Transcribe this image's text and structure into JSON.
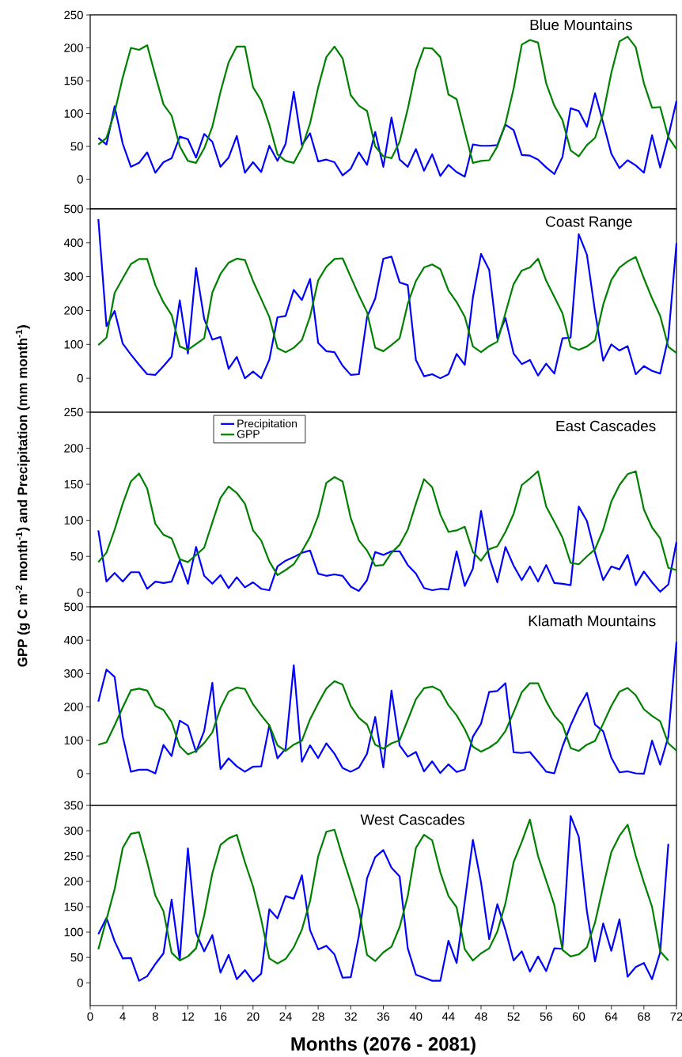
{
  "chart_data": [
    {
      "type": "line",
      "title": "Blue Mountains",
      "x": [
        1,
        2,
        3,
        4,
        5,
        6,
        7,
        8,
        9,
        10,
        11,
        12,
        13,
        14,
        15,
        16,
        17,
        18,
        19,
        20,
        21,
        22,
        23,
        24,
        25,
        26,
        27,
        28,
        29,
        30,
        31,
        32,
        33,
        34,
        35,
        36,
        37,
        38,
        39,
        40,
        41,
        42,
        43,
        44,
        45,
        46,
        47,
        48,
        49,
        50,
        51,
        52,
        53,
        54,
        55,
        56,
        57,
        58,
        59,
        60,
        61,
        62,
        63,
        64,
        65,
        66,
        67,
        68,
        69,
        70,
        71,
        72
      ],
      "xlim": [
        0,
        72
      ],
      "xticks": [
        0,
        4,
        8,
        12,
        16,
        20,
        24,
        28,
        32,
        36,
        40,
        44,
        48,
        52,
        56,
        60,
        64,
        68,
        72
      ],
      "ylim": [
        -45,
        250
      ],
      "yticks": [
        0,
        50,
        100,
        150,
        200,
        250
      ],
      "tick_labels": "y",
      "line_style": "solid",
      "series": [
        {
          "color": "#0000ff",
          "values": [
            63,
            53,
            111,
            54,
            19,
            25,
            41,
            10,
            26,
            32,
            65,
            61,
            33,
            69,
            57,
            19,
            33,
            66,
            10,
            26,
            11,
            51,
            28,
            54,
            133,
            52,
            70,
            27,
            30,
            26,
            6,
            16,
            41,
            22,
            72,
            19,
            94,
            30,
            19,
            46,
            13,
            38,
            5,
            22,
            11,
            4,
            53,
            51,
            51,
            52,
            83,
            75,
            37,
            36,
            30,
            18,
            8,
            34,
            108,
            104,
            80,
            131,
            86,
            39,
            17,
            29,
            21,
            10,
            67,
            18,
            65,
            119
          ]
        },
        {
          "color": "#008000",
          "values": [
            53,
            63,
            102,
            155,
            200,
            197,
            204,
            158,
            114,
            97,
            50,
            28,
            25,
            47,
            80,
            133,
            178,
            202,
            202,
            140,
            120,
            83,
            38,
            28,
            25,
            48,
            85,
            140,
            186,
            202,
            184,
            128,
            112,
            104,
            50,
            35,
            32,
            57,
            107,
            166,
            200,
            199,
            186,
            129,
            122,
            73,
            25,
            28,
            29,
            50,
            85,
            138,
            205,
            212,
            208,
            146,
            112,
            90,
            44,
            35,
            52,
            63,
            100,
            162,
            210,
            217,
            201,
            146,
            109,
            110,
            64,
            46
          ]
        }
      ]
    },
    {
      "type": "line",
      "title": "Coast Range",
      "x": [
        1,
        2,
        3,
        4,
        5,
        6,
        7,
        8,
        9,
        10,
        11,
        12,
        13,
        14,
        15,
        16,
        17,
        18,
        19,
        20,
        21,
        22,
        23,
        24,
        25,
        26,
        27,
        28,
        29,
        30,
        31,
        32,
        33,
        34,
        35,
        36,
        37,
        38,
        39,
        40,
        41,
        42,
        43,
        44,
        45,
        46,
        47,
        48,
        49,
        50,
        51,
        52,
        53,
        54,
        55,
        56,
        57,
        58,
        59,
        60,
        61,
        62,
        63,
        64,
        65,
        66,
        67,
        68,
        69,
        70,
        71,
        72
      ],
      "xlim": [
        0,
        72
      ],
      "xticks": [
        0,
        4,
        8,
        12,
        16,
        20,
        24,
        28,
        32,
        36,
        40,
        44,
        48,
        52,
        56,
        60,
        64,
        68,
        72
      ],
      "ylim": [
        -100,
        500
      ],
      "yticks": [
        0,
        100,
        200,
        300,
        400,
        500
      ],
      "tick_labels": "y",
      "line_style": "solid",
      "series": [
        {
          "color": "#0000ff",
          "values": [
            470,
            154,
            199,
            102,
            70,
            40,
            12,
            10,
            36,
            64,
            230,
            73,
            325,
            175,
            114,
            122,
            28,
            63,
            0,
            20,
            0,
            55,
            180,
            184,
            261,
            231,
            293,
            104,
            80,
            77,
            37,
            10,
            12,
            181,
            235,
            353,
            359,
            283,
            275,
            54,
            6,
            12,
            0,
            12,
            72,
            40,
            239,
            367,
            320,
            118,
            178,
            73,
            42,
            54,
            8,
            43,
            14,
            118,
            120,
            425,
            365,
            196,
            52,
            100,
            82,
            95,
            12,
            36,
            22,
            14,
            120,
            399
          ]
        },
        {
          "color": "#008000",
          "values": [
            98,
            120,
            252,
            295,
            337,
            352,
            352,
            275,
            224,
            187,
            94,
            84,
            101,
            118,
            253,
            308,
            341,
            353,
            349,
            287,
            234,
            181,
            89,
            77,
            90,
            113,
            182,
            289,
            329,
            352,
            354,
            299,
            245,
            195,
            90,
            80,
            98,
            118,
            220,
            287,
            327,
            336,
            322,
            259,
            225,
            182,
            94,
            77,
            95,
            108,
            193,
            278,
            318,
            327,
            353,
            288,
            240,
            192,
            93,
            84,
            94,
            112,
            217,
            290,
            327,
            345,
            358,
            295,
            236,
            184,
            93,
            75
          ]
        }
      ]
    },
    {
      "type": "line",
      "title": "East Cascades",
      "ylabel": "GPP (g C m$^{-2}$ month$^{-1}$) and Precipitation (mm month$^{-1}$)",
      "x": [
        1,
        2,
        3,
        4,
        5,
        6,
        7,
        8,
        9,
        10,
        11,
        12,
        13,
        14,
        15,
        16,
        17,
        18,
        19,
        20,
        21,
        22,
        23,
        24,
        25,
        26,
        27,
        28,
        29,
        30,
        31,
        32,
        33,
        34,
        35,
        36,
        37,
        38,
        39,
        40,
        41,
        42,
        43,
        44,
        45,
        46,
        47,
        48,
        49,
        50,
        51,
        52,
        53,
        54,
        55,
        56,
        57,
        58,
        59,
        60,
        61,
        62,
        63,
        64,
        65,
        66,
        67,
        68,
        69,
        70,
        71,
        72
      ],
      "xlim": [
        0,
        72
      ],
      "xticks": [
        0,
        4,
        8,
        12,
        16,
        20,
        24,
        28,
        32,
        36,
        40,
        44,
        48,
        52,
        56,
        60,
        64,
        68,
        72
      ],
      "ylim": [
        -20,
        250
      ],
      "yticks": [
        0,
        50,
        100,
        150,
        200,
        250
      ],
      "tick_labels": "y",
      "line_style": "solid",
      "legend": "top left",
      "series": [
        {
          "name": "Precipitation",
          "color": "#0000ff",
          "values": [
            86,
            15,
            27,
            15,
            28,
            28,
            5,
            15,
            13,
            15,
            44,
            12,
            63,
            23,
            12,
            24,
            6,
            21,
            7,
            14,
            5,
            3,
            36,
            44,
            49,
            55,
            58,
            26,
            23,
            25,
            23,
            8,
            2,
            17,
            56,
            52,
            57,
            57,
            38,
            26,
            6,
            3,
            5,
            4,
            57,
            9,
            33,
            113,
            49,
            14,
            63,
            37,
            17,
            36,
            15,
            38,
            13,
            12,
            10,
            119,
            99,
            55,
            17,
            36,
            32,
            52,
            10,
            29,
            14,
            1,
            11,
            70
          ]
        },
        {
          "name": "GPP",
          "color": "#008000",
          "values": [
            42,
            55,
            87,
            123,
            154,
            165,
            144,
            95,
            80,
            75,
            46,
            42,
            52,
            62,
            97,
            131,
            147,
            138,
            123,
            86,
            72,
            43,
            24,
            31,
            39,
            57,
            77,
            106,
            152,
            160,
            154,
            103,
            72,
            58,
            37,
            38,
            55,
            66,
            87,
            123,
            157,
            146,
            108,
            84,
            86,
            91,
            56,
            44,
            60,
            64,
            84,
            109,
            149,
            158,
            168,
            119,
            98,
            76,
            41,
            39,
            50,
            60,
            87,
            126,
            149,
            164,
            168,
            115,
            90,
            75,
            34,
            31
          ]
        }
      ]
    },
    {
      "type": "line",
      "title": "Klamath Mountains",
      "x": [
        1,
        2,
        3,
        4,
        5,
        6,
        7,
        8,
        9,
        10,
        11,
        12,
        13,
        14,
        15,
        16,
        17,
        18,
        19,
        20,
        21,
        22,
        23,
        24,
        25,
        26,
        27,
        28,
        29,
        30,
        31,
        32,
        33,
        34,
        35,
        36,
        37,
        38,
        39,
        40,
        41,
        42,
        43,
        44,
        45,
        46,
        47,
        48,
        49,
        50,
        51,
        52,
        53,
        54,
        55,
        56,
        57,
        58,
        59,
        60,
        61,
        62,
        63,
        64,
        65,
        66,
        67,
        68,
        69,
        70,
        71,
        72
      ],
      "xlim": [
        0,
        72
      ],
      "xticks": [
        0,
        4,
        8,
        12,
        16,
        20,
        24,
        28,
        32,
        36,
        40,
        44,
        48,
        52,
        56,
        60,
        64,
        68,
        72
      ],
      "ylim": [
        -95,
        500
      ],
      "yticks": [
        0,
        100,
        200,
        300,
        400,
        500
      ],
      "tick_labels": "y",
      "line_style": "solid",
      "series": [
        {
          "color": "#0000ff",
          "values": [
            216,
            312,
            290,
            111,
            6,
            12,
            12,
            1,
            86,
            53,
            159,
            144,
            65,
            128,
            272,
            14,
            46,
            22,
            6,
            21,
            22,
            145,
            46,
            75,
            325,
            36,
            85,
            47,
            91,
            60,
            17,
            6,
            18,
            60,
            170,
            19,
            249,
            85,
            51,
            65,
            7,
            37,
            2,
            28,
            5,
            13,
            111,
            150,
            245,
            248,
            271,
            64,
            62,
            65,
            36,
            6,
            1,
            81,
            145,
            199,
            242,
            147,
            127,
            48,
            4,
            7,
            1,
            0,
            99,
            27,
            111,
            395
          ]
        },
        {
          "color": "#008000",
          "values": [
            87,
            94,
            145,
            199,
            250,
            255,
            249,
            203,
            191,
            155,
            82,
            58,
            68,
            92,
            124,
            197,
            246,
            258,
            254,
            208,
            175,
            145,
            85,
            68,
            87,
            99,
            163,
            211,
            255,
            277,
            267,
            203,
            167,
            147,
            87,
            75,
            91,
            100,
            161,
            223,
            256,
            261,
            249,
            205,
            175,
            133,
            81,
            66,
            78,
            95,
            128,
            184,
            244,
            271,
            271,
            217,
            174,
            147,
            77,
            68,
            87,
            98,
            150,
            203,
            246,
            257,
            235,
            193,
            173,
            157,
            91,
            69
          ]
        }
      ]
    },
    {
      "type": "line",
      "title": "West Cascades",
      "xlabel": "Months (2076 - 2081)",
      "x": [
        1,
        2,
        3,
        4,
        5,
        6,
        7,
        8,
        9,
        10,
        11,
        12,
        13,
        14,
        15,
        16,
        17,
        18,
        19,
        20,
        21,
        22,
        23,
        24,
        25,
        26,
        27,
        28,
        29,
        30,
        31,
        32,
        33,
        34,
        35,
        36,
        37,
        38,
        39,
        40,
        41,
        42,
        43,
        44,
        45,
        46,
        47,
        48,
        49,
        50,
        51,
        52,
        53,
        54,
        55,
        56,
        57,
        58,
        59,
        60,
        61,
        62,
        63,
        64,
        65,
        66,
        67,
        68,
        69,
        70,
        71
      ],
      "xlim": [
        0,
        72
      ],
      "xticks": [
        0,
        4,
        8,
        12,
        16,
        20,
        24,
        28,
        32,
        36,
        40,
        44,
        48,
        52,
        56,
        60,
        64,
        68,
        72
      ],
      "ylim": [
        -45,
        350
      ],
      "yticks": [
        0,
        50,
        100,
        150,
        200,
        250,
        300,
        350
      ],
      "line_style": "solid",
      "series": [
        {
          "color": "#0000ff",
          "values": [
            96,
            128,
            82,
            48,
            49,
            4,
            13,
            37,
            58,
            164,
            45,
            265,
            98,
            62,
            94,
            20,
            55,
            7,
            25,
            3,
            18,
            145,
            127,
            171,
            166,
            212,
            104,
            66,
            73,
            56,
            10,
            11,
            93,
            206,
            248,
            262,
            227,
            210,
            68,
            16,
            10,
            4,
            4,
            83,
            39,
            160,
            282,
            198,
            86,
            155,
            104,
            44,
            62,
            22,
            52,
            23,
            68,
            67,
            329,
            288,
            141,
            42,
            117,
            63,
            125,
            12,
            31,
            39,
            7,
            60,
            274
          ]
        },
        {
          "color": "#008000",
          "values": [
            66,
            125,
            185,
            266,
            294,
            297,
            238,
            172,
            141,
            59,
            44,
            52,
            68,
            133,
            216,
            272,
            285,
            292,
            238,
            190,
            125,
            48,
            38,
            47,
            70,
            105,
            161,
            250,
            298,
            302,
            248,
            198,
            145,
            55,
            43,
            60,
            71,
            110,
            171,
            266,
            292,
            281,
            218,
            171,
            149,
            66,
            44,
            58,
            68,
            101,
            157,
            238,
            278,
            322,
            250,
            202,
            153,
            65,
            52,
            56,
            70,
            119,
            190,
            258,
            290,
            312,
            250,
            198,
            150,
            62,
            44
          ]
        }
      ]
    }
  ]
}
